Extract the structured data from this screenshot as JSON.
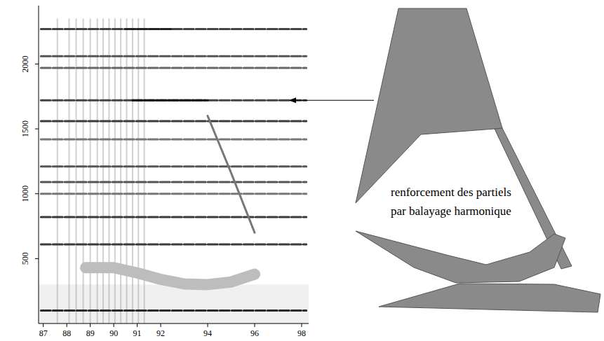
{
  "chart_data": {
    "type": "spectrogram",
    "xlim": [
      86.8,
      98.3
    ],
    "xticks": [
      87,
      88,
      89,
      90,
      91,
      92,
      94,
      96,
      98
    ],
    "ylim": [
      0,
      2450
    ],
    "yticks": [
      500,
      1000,
      1500,
      2000
    ],
    "series": [
      {
        "type": "line",
        "color": "#2a2a2a",
        "x": [
          86.9,
          98.2
        ],
        "values": [
          100,
          100
        ]
      },
      {
        "type": "line",
        "color": "#3a3a3a",
        "x": [
          86.9,
          98.2
        ],
        "values": [
          610,
          610
        ]
      },
      {
        "type": "line",
        "color": "#3a3a3a",
        "x": [
          86.9,
          98.2
        ],
        "values": [
          820,
          820
        ]
      },
      {
        "type": "line",
        "color": "#777777",
        "x": [
          86.9,
          98.2
        ],
        "values": [
          1000,
          1000
        ]
      },
      {
        "type": "line",
        "color": "#555555",
        "x": [
          86.9,
          98.2
        ],
        "values": [
          1090,
          1090
        ]
      },
      {
        "type": "line",
        "color": "#555555",
        "x": [
          86.9,
          98.2
        ],
        "values": [
          1210,
          1210
        ]
      },
      {
        "type": "line",
        "color": "#777777",
        "x": [
          86.9,
          98.2
        ],
        "values": [
          1420,
          1420
        ]
      },
      {
        "type": "line",
        "color": "#3a3a3a",
        "x": [
          86.9,
          98.2
        ],
        "values": [
          1560,
          1560
        ]
      },
      {
        "type": "line",
        "color": "#444444",
        "x": [
          86.9,
          98.2
        ],
        "values": [
          1720,
          1720
        ]
      },
      {
        "type": "line",
        "color": "#111111",
        "x": [
          90.8,
          94.0
        ],
        "values": [
          1720,
          1720
        ]
      },
      {
        "type": "line",
        "color": "#666666",
        "x": [
          86.9,
          98.2
        ],
        "values": [
          1970,
          1970
        ]
      },
      {
        "type": "line",
        "color": "#555555",
        "x": [
          86.9,
          98.2
        ],
        "values": [
          2060,
          2060
        ]
      },
      {
        "type": "line",
        "color": "#444444",
        "x": [
          86.9,
          98.2
        ],
        "values": [
          2270,
          2270
        ]
      },
      {
        "type": "line",
        "color": "#222222",
        "x": [
          90.5,
          92.5
        ],
        "values": [
          2270,
          2270
        ]
      },
      {
        "type": "sweep",
        "color": "#bdbdbd",
        "x": [
          88.8,
          90,
          91,
          92,
          93,
          94,
          95,
          96
        ],
        "values": [
          430,
          430,
          390,
          340,
          305,
          300,
          320,
          380
        ]
      },
      {
        "type": "sweep",
        "color": "#777777",
        "x": [
          94,
          94.5,
          95,
          95.5,
          96
        ],
        "values": [
          1600,
          1380,
          1160,
          930,
          700
        ]
      }
    ],
    "onsets": [
      87.6,
      88.1,
      88.4,
      88.7,
      89.0,
      89.3,
      89.55,
      89.8,
      90.05,
      90.3,
      90.55,
      90.8,
      91.05,
      91.3
    ],
    "annotation": {
      "lines": [
        "renforcement des partiels",
        "par balayage harmonique"
      ],
      "y": 1720
    }
  }
}
